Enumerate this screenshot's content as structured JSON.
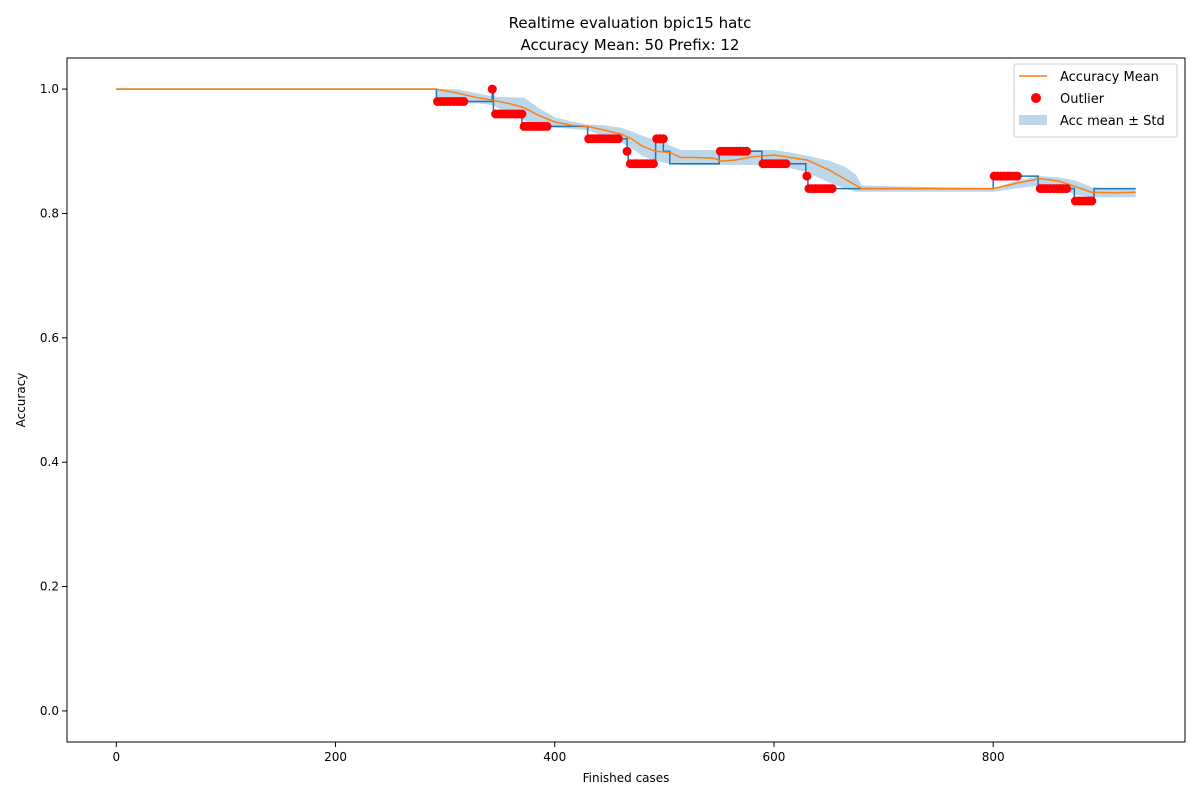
{
  "chart_data": {
    "type": "line",
    "title": "Realtime evaluation bpic15 hatc",
    "subtitle": "Accuracy Mean: 50 Prefix: 12",
    "xlabel": "Finished cases",
    "ylabel": "Accuracy",
    "xlim": [
      -45,
      975
    ],
    "ylim": [
      -0.05,
      1.05
    ],
    "xticks": [
      0,
      200,
      400,
      600,
      800
    ],
    "yticks": [
      0.0,
      0.2,
      0.4,
      0.6,
      0.8,
      1.0
    ],
    "xtick_labels": [
      "0",
      "200",
      "400",
      "600",
      "800"
    ],
    "ytick_labels": [
      "0.0",
      "0.2",
      "0.4",
      "0.6",
      "0.8",
      "1.0"
    ],
    "grid": false,
    "legend_position": "top-right",
    "legend": {
      "mean_label": "Accuracy Mean",
      "outlier_label": "Outlier",
      "band_label": "Acc mean ± Std"
    },
    "colors": {
      "accuracy": "#1f77b4",
      "mean": "#ff7f0e",
      "outlier": "#ff0000",
      "band": "#bdd7ea"
    },
    "series": [
      {
        "kind": "step",
        "points": [
          [
            0,
            1.0
          ],
          [
            292,
            1.0
          ],
          [
            292,
            0.98
          ],
          [
            343,
            0.98
          ],
          [
            343,
            1.0
          ],
          [
            344,
            1.0
          ],
          [
            344,
            0.96
          ],
          [
            370,
            0.96
          ],
          [
            370,
            0.94
          ],
          [
            396,
            0.94
          ],
          [
            396,
            0.94
          ],
          [
            430,
            0.94
          ],
          [
            430,
            0.92
          ],
          [
            466,
            0.92
          ],
          [
            466,
            0.9
          ],
          [
            467,
            0.9
          ],
          [
            467,
            0.88
          ],
          [
            492,
            0.88
          ],
          [
            492,
            0.92
          ],
          [
            499,
            0.92
          ],
          [
            499,
            0.9
          ],
          [
            505,
            0.9
          ],
          [
            505,
            0.88
          ],
          [
            550,
            0.88
          ],
          [
            550,
            0.9
          ],
          [
            589,
            0.9
          ],
          [
            589,
            0.88
          ],
          [
            629,
            0.88
          ],
          [
            629,
            0.86
          ],
          [
            631,
            0.86
          ],
          [
            631,
            0.84
          ],
          [
            800,
            0.84
          ],
          [
            800,
            0.86
          ],
          [
            841,
            0.86
          ],
          [
            841,
            0.84
          ],
          [
            874,
            0.84
          ],
          [
            874,
            0.82
          ],
          [
            892,
            0.82
          ],
          [
            892,
            0.84
          ],
          [
            930,
            0.84
          ]
        ]
      },
      {
        "name": "Accuracy Mean",
        "kind": "line",
        "points": [
          [
            0,
            1.0
          ],
          [
            292,
            1.0
          ],
          [
            310,
            0.994
          ],
          [
            330,
            0.986
          ],
          [
            344,
            0.982
          ],
          [
            360,
            0.976
          ],
          [
            372,
            0.97
          ],
          [
            385,
            0.958
          ],
          [
            400,
            0.947
          ],
          [
            415,
            0.942
          ],
          [
            430,
            0.94
          ],
          [
            445,
            0.934
          ],
          [
            460,
            0.928
          ],
          [
            470,
            0.92
          ],
          [
            480,
            0.908
          ],
          [
            492,
            0.9
          ],
          [
            505,
            0.898
          ],
          [
            515,
            0.89
          ],
          [
            530,
            0.89
          ],
          [
            545,
            0.889
          ],
          [
            552,
            0.884
          ],
          [
            565,
            0.886
          ],
          [
            580,
            0.891
          ],
          [
            600,
            0.894
          ],
          [
            615,
            0.89
          ],
          [
            630,
            0.886
          ],
          [
            650,
            0.87
          ],
          [
            680,
            0.84
          ],
          [
            700,
            0.84
          ],
          [
            800,
            0.84
          ],
          [
            820,
            0.848
          ],
          [
            842,
            0.856
          ],
          [
            860,
            0.852
          ],
          [
            875,
            0.843
          ],
          [
            890,
            0.834
          ],
          [
            910,
            0.833
          ],
          [
            930,
            0.834
          ]
        ]
      },
      {
        "name": "Acc mean ± Std",
        "kind": "band",
        "upper": [
          [
            292,
            1.0
          ],
          [
            310,
            1.0
          ],
          [
            330,
            0.993
          ],
          [
            344,
            0.988
          ],
          [
            360,
            0.987
          ],
          [
            372,
            0.986
          ],
          [
            385,
            0.97
          ],
          [
            400,
            0.955
          ],
          [
            415,
            0.948
          ],
          [
            430,
            0.943
          ],
          [
            445,
            0.942
          ],
          [
            460,
            0.938
          ],
          [
            470,
            0.932
          ],
          [
            480,
            0.925
          ],
          [
            492,
            0.918
          ],
          [
            505,
            0.91
          ],
          [
            515,
            0.902
          ],
          [
            530,
            0.902
          ],
          [
            545,
            0.902
          ],
          [
            552,
            0.901
          ],
          [
            565,
            0.9
          ],
          [
            580,
            0.902
          ],
          [
            600,
            0.902
          ],
          [
            615,
            0.898
          ],
          [
            630,
            0.893
          ],
          [
            650,
            0.885
          ],
          [
            665,
            0.875
          ],
          [
            675,
            0.862
          ],
          [
            680,
            0.845
          ],
          [
            800,
            0.84
          ],
          [
            820,
            0.852
          ],
          [
            842,
            0.86
          ],
          [
            860,
            0.858
          ],
          [
            875,
            0.853
          ],
          [
            890,
            0.842
          ],
          [
            910,
            0.84
          ],
          [
            930,
            0.84
          ]
        ],
        "lower": [
          [
            292,
            0.976
          ],
          [
            310,
            0.976
          ],
          [
            330,
            0.977
          ],
          [
            344,
            0.974
          ],
          [
            360,
            0.957
          ],
          [
            372,
            0.95
          ],
          [
            385,
            0.94
          ],
          [
            400,
            0.938
          ],
          [
            415,
            0.936
          ],
          [
            430,
            0.934
          ],
          [
            445,
            0.924
          ],
          [
            460,
            0.915
          ],
          [
            470,
            0.905
          ],
          [
            480,
            0.892
          ],
          [
            492,
            0.885
          ],
          [
            505,
            0.88
          ],
          [
            515,
            0.878
          ],
          [
            530,
            0.878
          ],
          [
            545,
            0.878
          ],
          [
            552,
            0.878
          ],
          [
            565,
            0.878
          ],
          [
            580,
            0.878
          ],
          [
            600,
            0.878
          ],
          [
            615,
            0.873
          ],
          [
            630,
            0.866
          ],
          [
            650,
            0.85
          ],
          [
            665,
            0.84
          ],
          [
            675,
            0.835
          ],
          [
            680,
            0.835
          ],
          [
            800,
            0.835
          ],
          [
            820,
            0.84
          ],
          [
            842,
            0.845
          ],
          [
            860,
            0.842
          ],
          [
            875,
            0.83
          ],
          [
            890,
            0.826
          ],
          [
            910,
            0.826
          ],
          [
            930,
            0.826
          ]
        ]
      },
      {
        "name": "Outlier",
        "kind": "scatter",
        "points": [
          [
            293,
            0.98
          ],
          [
            296,
            0.98
          ],
          [
            299,
            0.98
          ],
          [
            302,
            0.98
          ],
          [
            305,
            0.98
          ],
          [
            308,
            0.98
          ],
          [
            311,
            0.98
          ],
          [
            314,
            0.98
          ],
          [
            317,
            0.98
          ],
          [
            343,
            1.0
          ],
          [
            346,
            0.96
          ],
          [
            349,
            0.96
          ],
          [
            352,
            0.96
          ],
          [
            355,
            0.96
          ],
          [
            358,
            0.96
          ],
          [
            361,
            0.96
          ],
          [
            364,
            0.96
          ],
          [
            367,
            0.96
          ],
          [
            370,
            0.96
          ],
          [
            372,
            0.94
          ],
          [
            375,
            0.94
          ],
          [
            378,
            0.94
          ],
          [
            381,
            0.94
          ],
          [
            384,
            0.94
          ],
          [
            387,
            0.94
          ],
          [
            390,
            0.94
          ],
          [
            393,
            0.94
          ],
          [
            431,
            0.92
          ],
          [
            434,
            0.92
          ],
          [
            437,
            0.92
          ],
          [
            440,
            0.92
          ],
          [
            443,
            0.92
          ],
          [
            446,
            0.92
          ],
          [
            449,
            0.92
          ],
          [
            452,
            0.92
          ],
          [
            455,
            0.92
          ],
          [
            458,
            0.92
          ],
          [
            466,
            0.9
          ],
          [
            469,
            0.88
          ],
          [
            472,
            0.88
          ],
          [
            475,
            0.88
          ],
          [
            478,
            0.88
          ],
          [
            481,
            0.88
          ],
          [
            484,
            0.88
          ],
          [
            487,
            0.88
          ],
          [
            490,
            0.88
          ],
          [
            493,
            0.92
          ],
          [
            496,
            0.92
          ],
          [
            499,
            0.92
          ],
          [
            551,
            0.9
          ],
          [
            554,
            0.9
          ],
          [
            557,
            0.9
          ],
          [
            560,
            0.9
          ],
          [
            563,
            0.9
          ],
          [
            566,
            0.9
          ],
          [
            569,
            0.9
          ],
          [
            572,
            0.9
          ],
          [
            575,
            0.9
          ],
          [
            590,
            0.88
          ],
          [
            593,
            0.88
          ],
          [
            596,
            0.88
          ],
          [
            599,
            0.88
          ],
          [
            602,
            0.88
          ],
          [
            605,
            0.88
          ],
          [
            608,
            0.88
          ],
          [
            611,
            0.88
          ],
          [
            630,
            0.86
          ],
          [
            632,
            0.84
          ],
          [
            635,
            0.84
          ],
          [
            638,
            0.84
          ],
          [
            641,
            0.84
          ],
          [
            644,
            0.84
          ],
          [
            647,
            0.84
          ],
          [
            650,
            0.84
          ],
          [
            653,
            0.84
          ],
          [
            801,
            0.86
          ],
          [
            804,
            0.86
          ],
          [
            807,
            0.86
          ],
          [
            810,
            0.86
          ],
          [
            813,
            0.86
          ],
          [
            816,
            0.86
          ],
          [
            819,
            0.86
          ],
          [
            822,
            0.86
          ],
          [
            843,
            0.84
          ],
          [
            846,
            0.84
          ],
          [
            849,
            0.84
          ],
          [
            852,
            0.84
          ],
          [
            855,
            0.84
          ],
          [
            858,
            0.84
          ],
          [
            861,
            0.84
          ],
          [
            864,
            0.84
          ],
          [
            867,
            0.84
          ],
          [
            875,
            0.82
          ],
          [
            878,
            0.82
          ],
          [
            881,
            0.82
          ],
          [
            884,
            0.82
          ],
          [
            887,
            0.82
          ],
          [
            890,
            0.82
          ]
        ]
      }
    ]
  }
}
